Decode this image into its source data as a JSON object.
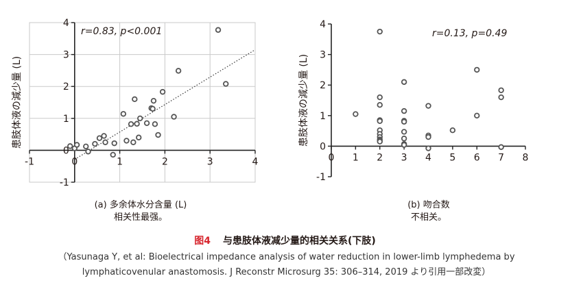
{
  "figure": {
    "number": "图4",
    "title": "与患肢体液减少量的相关关系(下肢)",
    "citation_line1": "（Yasunaga Y, et al: Bioelectrical impedance analysis of water reduction in lower-limb lymphedema by",
    "citation_line2": "lymphaticovenular anastomosis. J Reconstr Microsurg 35: 306–314, 2019 より引用一部改変）"
  },
  "chart_data": [
    {
      "type": "scatter",
      "panel_caption_line1": "(a) 多余体水分含量 (L)",
      "panel_caption_line2": "相关性最强。",
      "ylabel": "患肢体液の減少量 (L)",
      "xlabel": "",
      "annotation": "r=0.83, p<0.001",
      "xlim": [
        -1,
        4
      ],
      "ylim": [
        -1,
        4
      ],
      "xticks": [
        -1,
        0,
        1,
        2,
        3,
        4
      ],
      "xtick_labels": [
        "-1",
        "0",
        "1",
        "2",
        "3",
        "4"
      ],
      "yticks": [
        -1,
        0,
        1,
        2,
        3,
        4
      ],
      "ytick_labels": [
        "-1",
        "0",
        "1",
        "2",
        "3",
        "4"
      ],
      "grid": true,
      "trendline": {
        "style": "dotted",
        "x": [
          -0.05,
          4.0
        ],
        "y": [
          -0.33,
          3.15
        ]
      },
      "marker_color": "#555555",
      "points": [
        {
          "x": -0.1,
          "y": 0.13
        },
        {
          "x": 0.0,
          "y": 0.06
        },
        {
          "x": 0.05,
          "y": 0.17
        },
        {
          "x": 0.25,
          "y": 0.12
        },
        {
          "x": 0.3,
          "y": -0.04
        },
        {
          "x": 0.45,
          "y": 0.2
        },
        {
          "x": 0.55,
          "y": 0.38
        },
        {
          "x": 0.65,
          "y": 0.45
        },
        {
          "x": 0.68,
          "y": 0.25
        },
        {
          "x": 0.85,
          "y": -0.14
        },
        {
          "x": 0.88,
          "y": 0.22
        },
        {
          "x": 1.08,
          "y": 1.14
        },
        {
          "x": 1.15,
          "y": 0.3
        },
        {
          "x": 1.25,
          "y": 0.82
        },
        {
          "x": 1.3,
          "y": 0.25
        },
        {
          "x": 1.33,
          "y": 1.6
        },
        {
          "x": 1.38,
          "y": 0.83
        },
        {
          "x": 1.42,
          "y": 0.4
        },
        {
          "x": 1.45,
          "y": 1.0
        },
        {
          "x": 1.6,
          "y": 0.85
        },
        {
          "x": 1.7,
          "y": 1.32
        },
        {
          "x": 1.73,
          "y": 1.3
        },
        {
          "x": 1.75,
          "y": 1.55
        },
        {
          "x": 1.78,
          "y": 0.82
        },
        {
          "x": 1.85,
          "y": 0.48
        },
        {
          "x": 1.95,
          "y": 1.83
        },
        {
          "x": 2.2,
          "y": 1.05
        },
        {
          "x": 2.3,
          "y": 2.49
        },
        {
          "x": 3.18,
          "y": 3.77
        },
        {
          "x": 3.35,
          "y": 2.08
        }
      ]
    },
    {
      "type": "scatter",
      "panel_caption_line1": "(b) 吻合数",
      "panel_caption_line2": "不相关。",
      "ylabel": "患肢体液の減少量 (L)",
      "xlabel": "",
      "annotation": "r=0.13, p=0.49",
      "xlim": [
        0,
        8
      ],
      "ylim": [
        -1,
        4
      ],
      "xticks": [
        0,
        1,
        2,
        3,
        4,
        5,
        6,
        7,
        8
      ],
      "xtick_labels": [
        "0",
        "1",
        "2",
        "3",
        "4",
        "5",
        "6",
        "7",
        "8"
      ],
      "yticks": [
        -1,
        0,
        1,
        2,
        3,
        4
      ],
      "ytick_labels": [
        "-1",
        "0",
        "1",
        "2",
        "3",
        "4"
      ],
      "grid": false,
      "marker_color": "#555555",
      "points": [
        {
          "x": 1,
          "y": 1.05
        },
        {
          "x": 2,
          "y": 3.75
        },
        {
          "x": 2,
          "y": 1.6
        },
        {
          "x": 2,
          "y": 1.35
        },
        {
          "x": 2,
          "y": 0.85
        },
        {
          "x": 2,
          "y": 0.82
        },
        {
          "x": 2,
          "y": 0.52
        },
        {
          "x": 2,
          "y": 0.4
        },
        {
          "x": 2,
          "y": 0.3
        },
        {
          "x": 2,
          "y": 0.22
        },
        {
          "x": 2,
          "y": 0.18
        },
        {
          "x": 2,
          "y": 0.15
        },
        {
          "x": 3,
          "y": 2.1
        },
        {
          "x": 3,
          "y": 1.15
        },
        {
          "x": 3,
          "y": 0.83
        },
        {
          "x": 3,
          "y": 0.8
        },
        {
          "x": 3,
          "y": 0.47
        },
        {
          "x": 3,
          "y": 0.25
        },
        {
          "x": 3,
          "y": 0.07
        },
        {
          "x": 3,
          "y": 0.04
        },
        {
          "x": 4,
          "y": 1.32
        },
        {
          "x": 4,
          "y": 0.35
        },
        {
          "x": 4,
          "y": 0.3
        },
        {
          "x": 4,
          "y": -0.07
        },
        {
          "x": 5,
          "y": 0.52
        },
        {
          "x": 6,
          "y": 2.5
        },
        {
          "x": 6,
          "y": 1.0
        },
        {
          "x": 7,
          "y": 1.83
        },
        {
          "x": 7,
          "y": 1.6
        },
        {
          "x": 7,
          "y": -0.03
        }
      ]
    }
  ]
}
